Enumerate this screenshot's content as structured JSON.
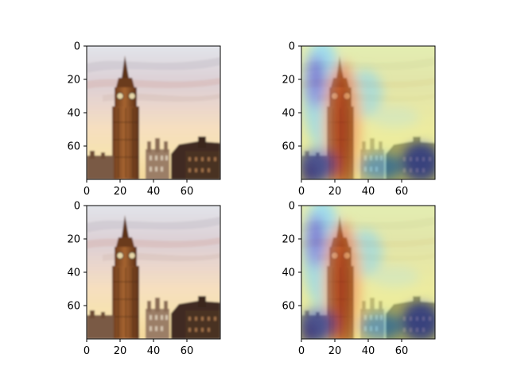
{
  "figure": {
    "background": "#ffffff"
  },
  "chart_data": [
    {
      "type": "image",
      "panel": "top-left",
      "content": "photo",
      "width": 80,
      "height": 80,
      "xlim": [
        0,
        80
      ],
      "ylim": [
        80,
        0
      ],
      "xticks": [
        0,
        20,
        40,
        60
      ],
      "yticks": [
        0,
        20,
        40,
        60
      ],
      "x_tick_labels": [
        "0",
        "20",
        "40",
        "60"
      ],
      "y_tick_labels": [
        "0",
        "20",
        "40",
        "60"
      ],
      "grid": false
    },
    {
      "type": "heatmap",
      "panel": "top-right",
      "content": "photo-with-heatmap-overlay",
      "colormap": "jet",
      "width": 80,
      "height": 80,
      "xlim": [
        0,
        80
      ],
      "ylim": [
        80,
        0
      ],
      "xticks": [
        0,
        20,
        40,
        60
      ],
      "yticks": [
        0,
        20,
        40,
        60
      ],
      "x_tick_labels": [
        "0",
        "20",
        "40",
        "60"
      ],
      "y_tick_labels": [
        "0",
        "20",
        "40",
        "60"
      ],
      "grid": false
    },
    {
      "type": "image",
      "panel": "bottom-left",
      "content": "photo",
      "width": 80,
      "height": 80,
      "xlim": [
        0,
        80
      ],
      "ylim": [
        80,
        0
      ],
      "xticks": [
        0,
        20,
        40,
        60
      ],
      "yticks": [
        0,
        20,
        40,
        60
      ],
      "x_tick_labels": [
        "0",
        "20",
        "40",
        "60"
      ],
      "y_tick_labels": [
        "0",
        "20",
        "40",
        "60"
      ],
      "grid": false
    },
    {
      "type": "heatmap",
      "panel": "bottom-right",
      "content": "photo-with-heatmap-overlay",
      "colormap": "jet",
      "width": 80,
      "height": 80,
      "xlim": [
        0,
        80
      ],
      "ylim": [
        80,
        0
      ],
      "xticks": [
        0,
        20,
        40,
        60
      ],
      "yticks": [
        0,
        20,
        40,
        60
      ],
      "x_tick_labels": [
        "0",
        "20",
        "40",
        "60"
      ],
      "y_tick_labels": [
        "0",
        "20",
        "40",
        "60"
      ],
      "grid": false
    }
  ]
}
